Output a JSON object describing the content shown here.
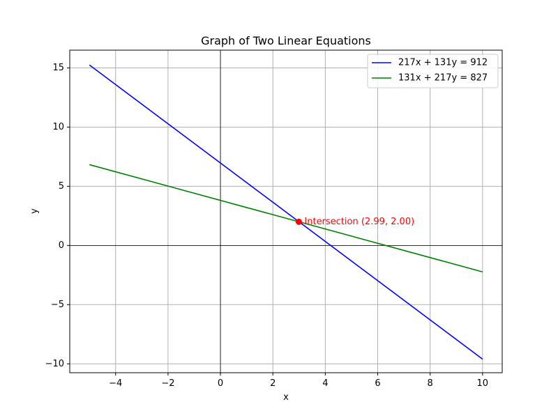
{
  "chart_data": {
    "type": "line",
    "title": "Graph of Two Linear Equations",
    "xlabel": "x",
    "ylabel": "y",
    "xlim": [
      -5.75,
      10.75
    ],
    "ylim": [
      -10.75,
      16.5
    ],
    "xticks": [
      -4,
      -2,
      0,
      2,
      4,
      6,
      8,
      10
    ],
    "yticks": [
      -10,
      -5,
      0,
      5,
      10,
      15
    ],
    "xtick_labels": [
      "−4",
      "−2",
      "0",
      "2",
      "4",
      "6",
      "8",
      "10"
    ],
    "ytick_labels": [
      "−10",
      "−5",
      "0",
      "5",
      "10",
      "15"
    ],
    "grid": true,
    "legend_position": "top-right",
    "series": [
      {
        "name": "217x + 131y = 912",
        "color": "#0000ff",
        "x": [
          -5,
          10
        ],
        "y": [
          15.25,
          -9.6
        ]
      },
      {
        "name": "131x + 217y = 827",
        "color": "#008000",
        "x": [
          -5,
          10
        ],
        "y": [
          6.83,
          -2.23
        ]
      }
    ],
    "intersection": {
      "x": 2.99,
      "y": 2.0,
      "label": "Intersection (2.99, 2.00)",
      "color": "#ff0000"
    }
  }
}
